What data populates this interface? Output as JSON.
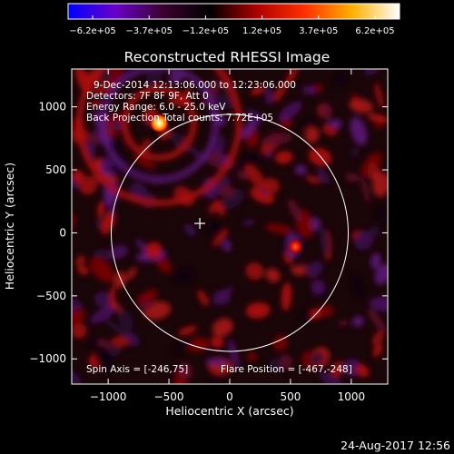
{
  "chart_data": {
    "type": "heatmap",
    "title": "Reconstructed RHESSI Image",
    "xlabel": "Heliocentric X (arcsec)",
    "ylabel": "Heliocentric Y (arcsec)",
    "xlim": [
      -1300,
      1300
    ],
    "ylim": [
      -1200,
      1300
    ],
    "xticks": [
      -1000,
      -500,
      0,
      500,
      1000
    ],
    "xtick_labels": [
      "−1000",
      "−500",
      "0",
      "500",
      "1000"
    ],
    "yticks": [
      -1000,
      -500,
      0,
      500,
      1000
    ],
    "ytick_labels": [
      "−1000",
      "−500",
      "0",
      "500",
      "1000"
    ],
    "colorbar": {
      "tick_labels": [
        "−6.2e+05",
        "−3.7e+05",
        "−1.2e+05",
        "1.2e+05",
        "3.7e+05",
        "6.2e+05"
      ],
      "range": [
        -620000,
        620000
      ],
      "colors": [
        "#0000ff",
        "#6a00c8",
        "#3a0030",
        "#000000",
        "#b00000",
        "#ff3000",
        "#ffb000",
        "#ffffff"
      ]
    },
    "solar_limb": {
      "center": [
        0,
        0
      ],
      "radius_arcsec": 975
    },
    "flare_position": [
      -467,
      -248
    ],
    "sources": [
      {
        "x": -580,
        "y": 870,
        "level": "peak",
        "color": "#ffffff"
      },
      {
        "x": 540,
        "y": -110,
        "level": "high",
        "color": "#ff4a10"
      }
    ],
    "annotations": {
      "time_range": "9-Dec-2014 12:13:06.000 to 12:23:06.000",
      "detectors": "Detectors: 7F 8F 9F, Att 0",
      "energy_range": "Energy Range: 6.0 - 25.0 keV",
      "back_projection": "Back Projection  Total counts: 7.72E+05",
      "spin_axis": "Spin Axis = [-246,75]",
      "flare_position_label": "Flare Position = [-467,-248]"
    }
  },
  "footer": {
    "timestamp": "24-Aug-2017 12:56"
  }
}
